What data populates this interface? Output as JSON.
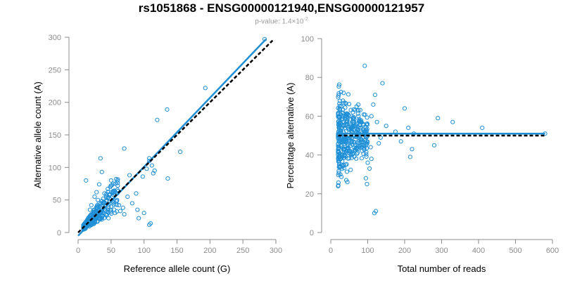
{
  "page": {
    "title": "rs1051868 - ENSG00000121940,ENSG00000121957",
    "subtitle_prefix": "p-value: 1.4×10",
    "subtitle_exp": "-2"
  },
  "colors": {
    "points": "#1f8fd6",
    "fit_line": "#1f8fd6",
    "reference_line": "#000000",
    "axis": "#8c8c8c"
  },
  "chart_data": [
    {
      "type": "scatter",
      "xlabel": "Reference allele count (G)",
      "ylabel": "Alternative allele count (A)",
      "xlim": [
        0,
        300
      ],
      "ylim": [
        0,
        300
      ],
      "xticks": [
        0,
        50,
        100,
        150,
        200,
        250,
        300
      ],
      "yticks": [
        0,
        50,
        100,
        150,
        200,
        250,
        300
      ],
      "lines": [
        {
          "style": "solid",
          "color": "#1f8fd6",
          "x": [
            0,
            285
          ],
          "y": [
            -5,
            297
          ]
        },
        {
          "style": "dashed",
          "color": "#000000",
          "x": [
            0,
            295
          ],
          "y": [
            0,
            295
          ]
        }
      ],
      "points": [
        [
          283,
          297
        ],
        [
          193,
          222
        ],
        [
          135,
          189
        ],
        [
          120,
          173
        ],
        [
          155,
          124
        ],
        [
          70,
          129
        ],
        [
          34,
          114
        ],
        [
          108,
          114
        ],
        [
          112,
          103
        ],
        [
          136,
          83
        ],
        [
          104,
          98
        ],
        [
          116,
          95
        ],
        [
          114,
          91
        ],
        [
          108,
          110
        ],
        [
          98,
          86
        ],
        [
          78,
          88
        ],
        [
          12,
          80
        ],
        [
          36,
          93
        ],
        [
          32,
          74
        ],
        [
          45,
          67
        ],
        [
          60,
          72
        ],
        [
          50,
          80
        ],
        [
          88,
          60
        ],
        [
          40,
          60
        ],
        [
          28,
          62
        ],
        [
          82,
          45
        ],
        [
          75,
          55
        ],
        [
          58,
          48
        ],
        [
          64,
          33
        ],
        [
          70,
          28
        ],
        [
          90,
          35
        ],
        [
          92,
          22
        ],
        [
          108,
          12
        ],
        [
          110,
          14
        ],
        [
          100,
          30
        ],
        [
          56,
          30
        ],
        [
          46,
          22
        ],
        [
          40,
          45
        ],
        [
          30,
          50
        ],
        [
          34,
          38
        ],
        [
          42,
          34
        ],
        [
          38,
          52
        ],
        [
          20,
          42
        ],
        [
          25,
          55
        ],
        [
          18,
          35
        ],
        [
          50,
          40
        ],
        [
          62,
          42
        ],
        [
          68,
          38
        ],
        [
          52,
          55
        ],
        [
          48,
          58
        ]
      ]
    },
    {
      "type": "scatter",
      "xlabel": "Total number of reads",
      "ylabel": "Percentage alternative (A)",
      "xlim": [
        0,
        600
      ],
      "ylim": [
        0,
        100
      ],
      "xticks": [
        0,
        100,
        200,
        300,
        400,
        500,
        600
      ],
      "yticks": [
        0,
        20,
        40,
        60,
        80,
        100
      ],
      "lines": [
        {
          "style": "solid",
          "color": "#1f8fd6",
          "x": [
            20,
            580
          ],
          "y": [
            51,
            51
          ]
        },
        {
          "style": "dashed",
          "color": "#000000",
          "x": [
            20,
            580
          ],
          "y": [
            50,
            50
          ]
        }
      ],
      "points": [
        [
          580,
          51
        ],
        [
          410,
          54
        ],
        [
          330,
          57
        ],
        [
          290,
          59
        ],
        [
          280,
          45
        ],
        [
          225,
          51
        ],
        [
          220,
          43
        ],
        [
          215,
          39
        ],
        [
          210,
          54
        ],
        [
          200,
          64
        ],
        [
          190,
          47
        ],
        [
          175,
          52
        ],
        [
          150,
          55
        ],
        [
          140,
          77
        ],
        [
          120,
          71
        ],
        [
          110,
          60
        ],
        [
          118,
          10
        ],
        [
          122,
          11
        ],
        [
          98,
          25
        ],
        [
          92,
          86
        ],
        [
          95,
          28
        ],
        [
          105,
          33
        ],
        [
          110,
          38
        ],
        [
          100,
          36
        ],
        [
          85,
          45
        ],
        [
          80,
          57
        ],
        [
          75,
          60
        ],
        [
          70,
          65
        ],
        [
          60,
          62
        ],
        [
          55,
          40
        ],
        [
          45,
          26
        ],
        [
          42,
          27
        ],
        [
          40,
          35
        ],
        [
          38,
          43
        ],
        [
          35,
          55
        ],
        [
          33,
          68
        ],
        [
          35,
          72
        ],
        [
          130,
          46
        ],
        [
          135,
          49
        ],
        [
          125,
          57
        ],
        [
          115,
          66
        ],
        [
          108,
          44
        ],
        [
          90,
          52
        ],
        [
          65,
          50
        ],
        [
          50,
          47
        ],
        [
          28,
          52
        ],
        [
          30,
          58
        ],
        [
          36,
          47
        ],
        [
          44,
          56
        ],
        [
          52,
          53
        ]
      ]
    }
  ]
}
